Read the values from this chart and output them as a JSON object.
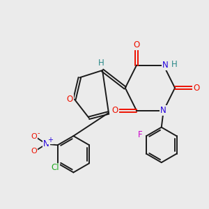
{
  "background_color": "#ebebeb",
  "bond_color": "#1a1a1a",
  "atom_colors": {
    "O": "#ee1100",
    "N": "#2200dd",
    "H": "#2a8888",
    "F": "#cc00cc",
    "Cl": "#22aa22",
    "NO2_N": "#2200dd",
    "NO2_O": "#ee1100"
  },
  "figsize": [
    3.0,
    3.0
  ],
  "dpi": 100
}
